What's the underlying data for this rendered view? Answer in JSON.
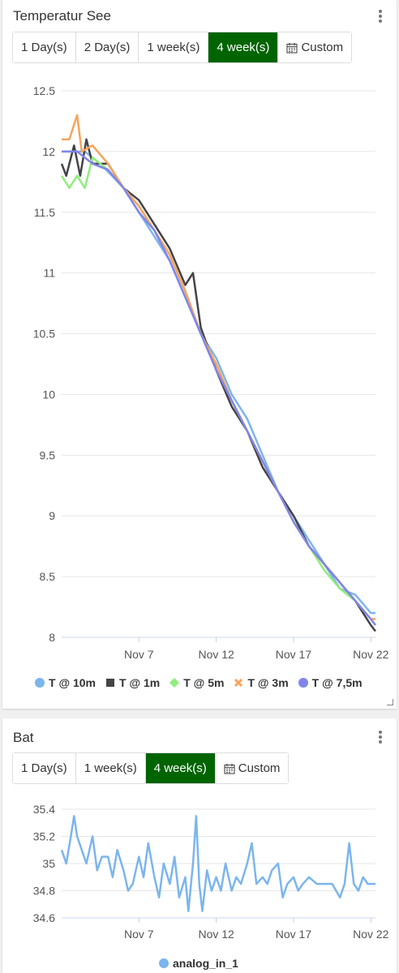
{
  "temp_card": {
    "title": "Temperatur See",
    "buttons": [
      "1 Day(s)",
      "2 Day(s)",
      "1 week(s)",
      "4 week(s)",
      "Custom"
    ],
    "active_button": "4 week(s)",
    "accent": "#006400"
  },
  "bat_card": {
    "title": "Bat",
    "buttons": [
      "1 Day(s)",
      "1 week(s)",
      "4 week(s)",
      "Custom"
    ],
    "active_button": "4 week(s)"
  },
  "chart_data": [
    {
      "type": "line",
      "y_ticks": [
        "12.5",
        "12",
        "11.5",
        "11",
        "10.5",
        "10",
        "9.5",
        "9",
        "8.5",
        "8"
      ],
      "ylim": [
        8,
        12.5
      ],
      "x_ticks": [
        "Nov 7",
        "Nov 12",
        "Nov 17",
        "Nov 22"
      ],
      "xlim": [
        2.0,
        22.3
      ],
      "grid": "horizontal",
      "legend_position": "bottom",
      "series": [
        {
          "name": "T @ 10m",
          "color": "#7cb5ec",
          "marker": "circle",
          "points": [
            [
              2.0,
              12.0
            ],
            [
              3.5,
              12.0
            ],
            [
              4.5,
              11.9
            ],
            [
              6.0,
              11.7
            ],
            [
              7.0,
              11.5
            ],
            [
              8.0,
              11.3
            ],
            [
              9.0,
              11.1
            ],
            [
              10.0,
              10.8
            ],
            [
              11.0,
              10.5
            ],
            [
              12.0,
              10.3
            ],
            [
              13.0,
              10.0
            ],
            [
              14.0,
              9.8
            ],
            [
              15.0,
              9.5
            ],
            [
              16.0,
              9.2
            ],
            [
              17.0,
              9.0
            ],
            [
              18.0,
              8.8
            ],
            [
              19.0,
              8.6
            ],
            [
              20.0,
              8.4
            ],
            [
              21.0,
              8.35
            ],
            [
              22.0,
              8.2
            ],
            [
              22.3,
              8.2
            ]
          ]
        },
        {
          "name": "T @ 1m",
          "color": "#434348",
          "marker": "square",
          "points": [
            [
              2.0,
              11.9
            ],
            [
              2.3,
              11.8
            ],
            [
              2.8,
              12.05
            ],
            [
              3.2,
              11.8
            ],
            [
              3.6,
              12.1
            ],
            [
              4.0,
              11.9
            ],
            [
              5.0,
              11.9
            ],
            [
              6.0,
              11.7
            ],
            [
              7.0,
              11.6
            ],
            [
              8.0,
              11.4
            ],
            [
              8.5,
              11.3
            ],
            [
              9.0,
              11.2
            ],
            [
              10.0,
              10.9
            ],
            [
              10.5,
              11.0
            ],
            [
              11.0,
              10.55
            ],
            [
              12.0,
              10.2
            ],
            [
              13.0,
              9.9
            ],
            [
              14.0,
              9.7
            ],
            [
              15.0,
              9.4
            ],
            [
              16.0,
              9.2
            ],
            [
              17.0,
              9.0
            ],
            [
              18.0,
              8.75
            ],
            [
              19.0,
              8.6
            ],
            [
              20.0,
              8.45
            ],
            [
              21.0,
              8.3
            ],
            [
              22.0,
              8.1
            ],
            [
              22.3,
              8.05
            ]
          ]
        },
        {
          "name": "T @ 5m",
          "color": "#90ed7d",
          "marker": "diamond",
          "points": [
            [
              2.0,
              11.8
            ],
            [
              2.5,
              11.7
            ],
            [
              3.0,
              11.8
            ],
            [
              3.5,
              11.7
            ],
            [
              4.0,
              11.95
            ],
            [
              5.0,
              11.85
            ],
            [
              6.0,
              11.7
            ],
            [
              7.0,
              11.55
            ],
            [
              8.0,
              11.35
            ],
            [
              9.0,
              11.15
            ],
            [
              10.0,
              10.85
            ],
            [
              11.0,
              10.5
            ],
            [
              12.0,
              10.25
            ],
            [
              13.0,
              9.95
            ],
            [
              14.0,
              9.7
            ],
            [
              15.0,
              9.45
            ],
            [
              16.0,
              9.2
            ],
            [
              17.0,
              8.95
            ],
            [
              18.0,
              8.75
            ],
            [
              19.0,
              8.55
            ],
            [
              20.0,
              8.4
            ],
            [
              21.0,
              8.3
            ],
            [
              22.0,
              8.15
            ],
            [
              22.3,
              8.1
            ]
          ]
        },
        {
          "name": "T @ 3m",
          "color": "#f7a35c",
          "marker": "cross",
          "points": [
            [
              2.0,
              12.1
            ],
            [
              2.5,
              12.1
            ],
            [
              3.0,
              12.3
            ],
            [
              3.3,
              12.0
            ],
            [
              4.0,
              12.05
            ],
            [
              5.0,
              11.9
            ],
            [
              6.0,
              11.7
            ],
            [
              7.0,
              11.55
            ],
            [
              8.0,
              11.35
            ],
            [
              9.0,
              11.15
            ],
            [
              10.0,
              10.85
            ],
            [
              11.0,
              10.5
            ],
            [
              12.0,
              10.25
            ],
            [
              13.0,
              9.95
            ],
            [
              14.0,
              9.7
            ],
            [
              15.0,
              9.45
            ],
            [
              16.0,
              9.2
            ],
            [
              17.0,
              8.95
            ],
            [
              18.0,
              8.75
            ],
            [
              19.0,
              8.6
            ],
            [
              20.0,
              8.45
            ],
            [
              21.0,
              8.3
            ],
            [
              22.0,
              8.15
            ],
            [
              22.3,
              8.15
            ]
          ]
        },
        {
          "name": "T @ 7,5m",
          "color": "#8085e9",
          "marker": "circle",
          "points": [
            [
              2.0,
              12.0
            ],
            [
              3.0,
              12.0
            ],
            [
              4.0,
              11.9
            ],
            [
              5.0,
              11.85
            ],
            [
              6.0,
              11.7
            ],
            [
              7.0,
              11.5
            ],
            [
              8.0,
              11.35
            ],
            [
              9.0,
              11.1
            ],
            [
              10.0,
              10.8
            ],
            [
              11.0,
              10.5
            ],
            [
              12.0,
              10.2
            ],
            [
              13.0,
              9.95
            ],
            [
              14.0,
              9.7
            ],
            [
              15.0,
              9.45
            ],
            [
              16.0,
              9.2
            ],
            [
              17.0,
              8.95
            ],
            [
              18.0,
              8.75
            ],
            [
              19.0,
              8.6
            ],
            [
              20.0,
              8.45
            ],
            [
              21.0,
              8.3
            ],
            [
              22.0,
              8.15
            ],
            [
              22.3,
              8.1
            ]
          ]
        }
      ]
    },
    {
      "type": "line",
      "y_ticks": [
        "35.4",
        "35.2",
        "35",
        "34.8",
        "34.6"
      ],
      "ylim": [
        34.6,
        35.4
      ],
      "x_ticks": [
        "Nov 7",
        "Nov 12",
        "Nov 17",
        "Nov 22"
      ],
      "xlim": [
        2.0,
        22.3
      ],
      "grid": "horizontal",
      "legend_position": "bottom",
      "series": [
        {
          "name": "analog_in_1",
          "color": "#7cb5ec",
          "marker": "circle",
          "points": [
            [
              2.0,
              35.1
            ],
            [
              2.3,
              35.0
            ],
            [
              2.6,
              35.2
            ],
            [
              2.8,
              35.35
            ],
            [
              3.0,
              35.2
            ],
            [
              3.3,
              35.1
            ],
            [
              3.6,
              35.0
            ],
            [
              4.0,
              35.2
            ],
            [
              4.3,
              34.95
            ],
            [
              4.6,
              35.05
            ],
            [
              5.0,
              35.05
            ],
            [
              5.3,
              34.9
            ],
            [
              5.6,
              35.1
            ],
            [
              6.0,
              34.95
            ],
            [
              6.3,
              34.8
            ],
            [
              6.6,
              34.85
            ],
            [
              7.0,
              35.05
            ],
            [
              7.3,
              34.9
            ],
            [
              7.6,
              35.15
            ],
            [
              8.0,
              34.9
            ],
            [
              8.3,
              34.75
            ],
            [
              8.6,
              35.0
            ],
            [
              9.0,
              34.85
            ],
            [
              9.3,
              35.05
            ],
            [
              9.6,
              34.75
            ],
            [
              10.0,
              34.9
            ],
            [
              10.2,
              34.65
            ],
            [
              10.5,
              35.0
            ],
            [
              10.7,
              35.35
            ],
            [
              10.9,
              34.85
            ],
            [
              11.1,
              34.65
            ],
            [
              11.4,
              34.95
            ],
            [
              11.7,
              34.8
            ],
            [
              12.0,
              34.9
            ],
            [
              12.3,
              34.8
            ],
            [
              12.6,
              35.0
            ],
            [
              13.0,
              34.8
            ],
            [
              13.3,
              34.9
            ],
            [
              13.6,
              34.85
            ],
            [
              14.0,
              35.0
            ],
            [
              14.3,
              35.15
            ],
            [
              14.6,
              34.85
            ],
            [
              15.0,
              34.9
            ],
            [
              15.3,
              34.85
            ],
            [
              15.6,
              34.95
            ],
            [
              16.0,
              35.0
            ],
            [
              16.3,
              34.75
            ],
            [
              16.6,
              34.85
            ],
            [
              17.0,
              34.9
            ],
            [
              17.3,
              34.8
            ],
            [
              17.6,
              34.85
            ],
            [
              18.0,
              34.9
            ],
            [
              18.5,
              34.85
            ],
            [
              19.0,
              34.85
            ],
            [
              19.5,
              34.85
            ],
            [
              20.0,
              34.75
            ],
            [
              20.3,
              34.85
            ],
            [
              20.6,
              35.15
            ],
            [
              20.9,
              34.85
            ],
            [
              21.2,
              34.8
            ],
            [
              21.5,
              34.9
            ],
            [
              21.8,
              34.85
            ],
            [
              22.3,
              34.85
            ]
          ]
        }
      ]
    }
  ]
}
